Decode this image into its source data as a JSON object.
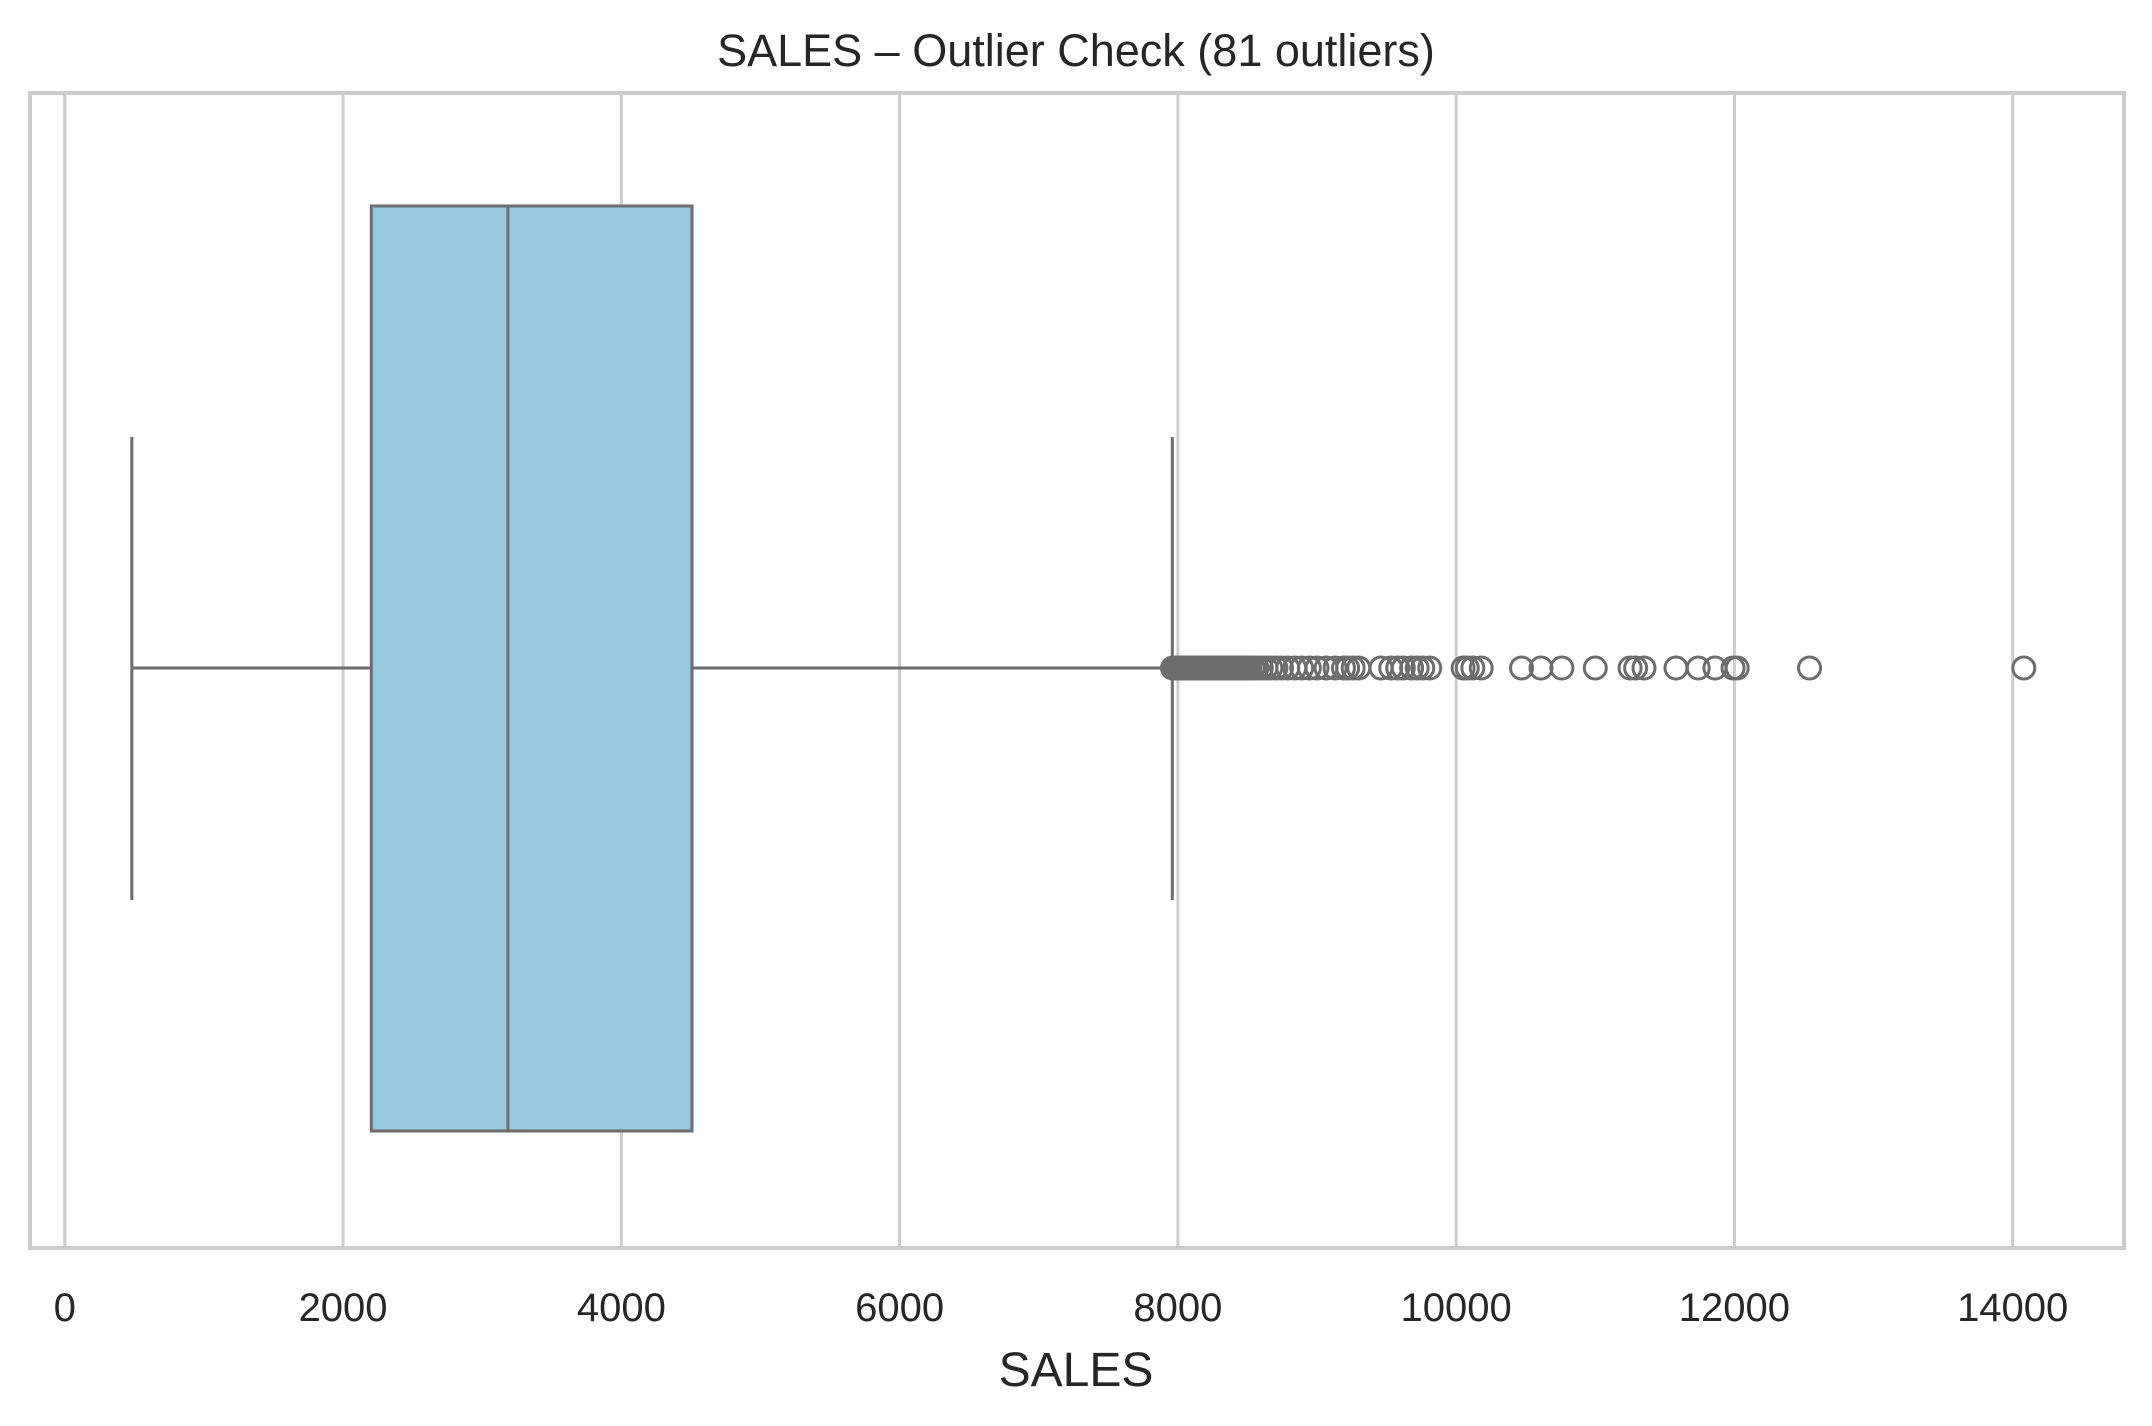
{
  "chart_data": {
    "type": "boxplot",
    "title": "SALES – Outlier Check (81 outliers)",
    "xlabel": "SALES",
    "ylabel": "",
    "xlim": [
      -250,
      14800
    ],
    "x_ticks": [
      0,
      2000,
      4000,
      6000,
      8000,
      10000,
      12000,
      14000
    ],
    "x_tick_labels": [
      "0",
      "2000",
      "4000",
      "6000",
      "8000",
      "10000",
      "12000",
      "14000"
    ],
    "grid": "vertical",
    "box": {
      "whisker_low": 482,
      "q1": 2203,
      "median": 3185,
      "q3": 4508,
      "whisker_high": 7960
    },
    "outliers": [
      7962,
      7978,
      7990,
      8005,
      8020,
      8036,
      8050,
      8068,
      8083,
      8100,
      8115,
      8132,
      8148,
      8165,
      8180,
      8198,
      8213,
      8230,
      8247,
      8263,
      8280,
      8297,
      8314,
      8330,
      8348,
      8365,
      8382,
      8400,
      8418,
      8436,
      8455,
      8474,
      8494,
      8515,
      8540,
      8568,
      8600,
      8633,
      8668,
      8705,
      8745,
      8790,
      8840,
      8890,
      8945,
      9000,
      9065,
      9130,
      9190,
      9220,
      9260,
      9300,
      9460,
      9530,
      9580,
      9620,
      9680,
      9720,
      9760,
      9810,
      10050,
      10080,
      10120,
      10180,
      10470,
      10610,
      10760,
      11000,
      11250,
      11290,
      11350,
      11580,
      11740,
      11860,
      11990,
      12020,
      12540,
      14080,
      8225,
      8355,
      8485
    ],
    "colors": {
      "box_fill": "#97c8de",
      "line": "#6d6d6d",
      "grid": "#cccccc",
      "frame": "#cccccc",
      "text": "#262626"
    }
  }
}
